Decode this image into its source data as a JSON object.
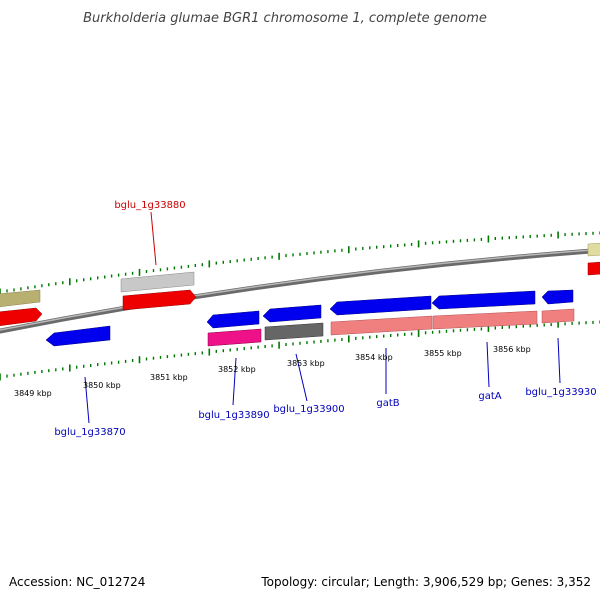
{
  "title": "Burkholderia glumae BGR1 chromosome 1, complete genome",
  "footer": {
    "accession": "Accession: NC_012724",
    "summary": "Topology: circular; Length: 3,906,529 bp; Genes: 3,352"
  },
  "colors": {
    "highlight_label": "#cc0000",
    "gene_label": "#0000bb",
    "tick": "#007700",
    "backbone": "#808080",
    "cds_forward": "#0000ee",
    "cds_reverse_red": "#ee0000",
    "rna_pink": "#f08080",
    "gene_magenta": "#ee1188",
    "gene_grey": "#666666",
    "gene_light_grey": "#c8c8c8",
    "gene_olive": "#b8b070",
    "gene_beige": "#e0dca0"
  },
  "scale_labels": [
    {
      "text": "3849 kbp"
    },
    {
      "text": "3850 kbp"
    },
    {
      "text": "3851 kbp"
    },
    {
      "text": "3852 kbp"
    },
    {
      "text": "3853 kbp"
    },
    {
      "text": "3854 kbp"
    },
    {
      "text": "3855 kbp"
    },
    {
      "text": "3856 kbp"
    }
  ],
  "gene_labels": [
    {
      "name": "bglu_1g33880",
      "highlight": true
    },
    {
      "name": "bglu_1g33870"
    },
    {
      "name": "bglu_1g33890"
    },
    {
      "name": "bglu_1g33900"
    },
    {
      "name": "gatB"
    },
    {
      "name": "gatA"
    },
    {
      "name": "bglu_1g33930"
    }
  ]
}
